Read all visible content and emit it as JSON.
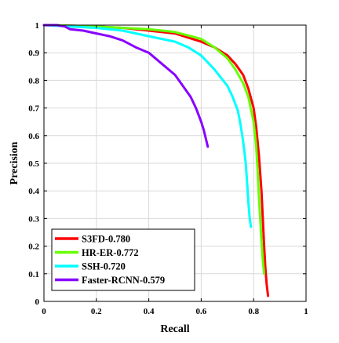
{
  "chart_data": {
    "type": "line",
    "title": "",
    "xlabel": "Recall",
    "ylabel": "Precision",
    "xlim": [
      0,
      1
    ],
    "ylim": [
      0,
      1
    ],
    "xticks": [
      "0",
      "0.2",
      "0.4",
      "0.6",
      "0.8",
      "1"
    ],
    "yticks": [
      "0",
      "0.1",
      "0.2",
      "0.3",
      "0.4",
      "0.5",
      "0.6",
      "0.7",
      "0.8",
      "0.9",
      "1"
    ],
    "grid": true,
    "legend_position": "bottom-left",
    "series": [
      {
        "name": "S3FD-0.780",
        "color": "#ff0000",
        "x": [
          0.0,
          0.1,
          0.2,
          0.3,
          0.4,
          0.5,
          0.6,
          0.65,
          0.7,
          0.73,
          0.76,
          0.78,
          0.8,
          0.81,
          0.82,
          0.83,
          0.835,
          0.84,
          0.845,
          0.85,
          0.855
        ],
        "y": [
          1.0,
          0.998,
          0.995,
          0.99,
          0.98,
          0.97,
          0.94,
          0.92,
          0.89,
          0.86,
          0.82,
          0.77,
          0.7,
          0.63,
          0.53,
          0.4,
          0.3,
          0.2,
          0.12,
          0.06,
          0.02
        ]
      },
      {
        "name": "HR-ER-0.772",
        "color": "#66ff00",
        "x": [
          0.0,
          0.1,
          0.2,
          0.3,
          0.4,
          0.5,
          0.6,
          0.65,
          0.7,
          0.73,
          0.76,
          0.78,
          0.8,
          0.81,
          0.815,
          0.82,
          0.825,
          0.83,
          0.835,
          0.84
        ],
        "y": [
          1.0,
          0.998,
          0.995,
          0.99,
          0.985,
          0.975,
          0.95,
          0.92,
          0.88,
          0.84,
          0.79,
          0.74,
          0.65,
          0.56,
          0.48,
          0.38,
          0.3,
          0.22,
          0.15,
          0.1
        ]
      },
      {
        "name": "SSH-0.720",
        "color": "#00ffff",
        "x": [
          0.0,
          0.1,
          0.2,
          0.3,
          0.4,
          0.5,
          0.55,
          0.6,
          0.65,
          0.7,
          0.72,
          0.74,
          0.75,
          0.76,
          0.77,
          0.775,
          0.78,
          0.785,
          0.79
        ],
        "y": [
          1.0,
          0.995,
          0.99,
          0.98,
          0.96,
          0.94,
          0.92,
          0.89,
          0.84,
          0.78,
          0.74,
          0.69,
          0.64,
          0.58,
          0.5,
          0.43,
          0.36,
          0.3,
          0.27
        ]
      },
      {
        "name": "Faster-RCNN-0.579",
        "color": "#8800ff",
        "x": [
          0.0,
          0.05,
          0.08,
          0.1,
          0.15,
          0.2,
          0.25,
          0.3,
          0.35,
          0.4,
          0.45,
          0.5,
          0.53,
          0.56,
          0.58,
          0.6,
          0.61,
          0.615,
          0.62,
          0.625
        ],
        "y": [
          1.0,
          1.0,
          0.995,
          0.985,
          0.98,
          0.97,
          0.96,
          0.945,
          0.92,
          0.9,
          0.86,
          0.82,
          0.78,
          0.74,
          0.7,
          0.65,
          0.62,
          0.6,
          0.58,
          0.56
        ]
      }
    ]
  }
}
